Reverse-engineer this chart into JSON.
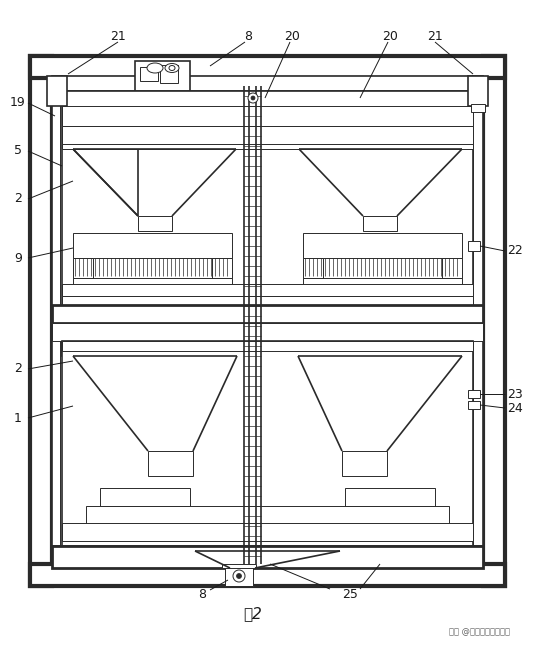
{
  "background_color": "#ffffff",
  "line_color": "#2a2a2a",
  "text_color": "#1a1a1a",
  "figure_label": "图2",
  "watermark": "头条 @知识产权小佳老师"
}
